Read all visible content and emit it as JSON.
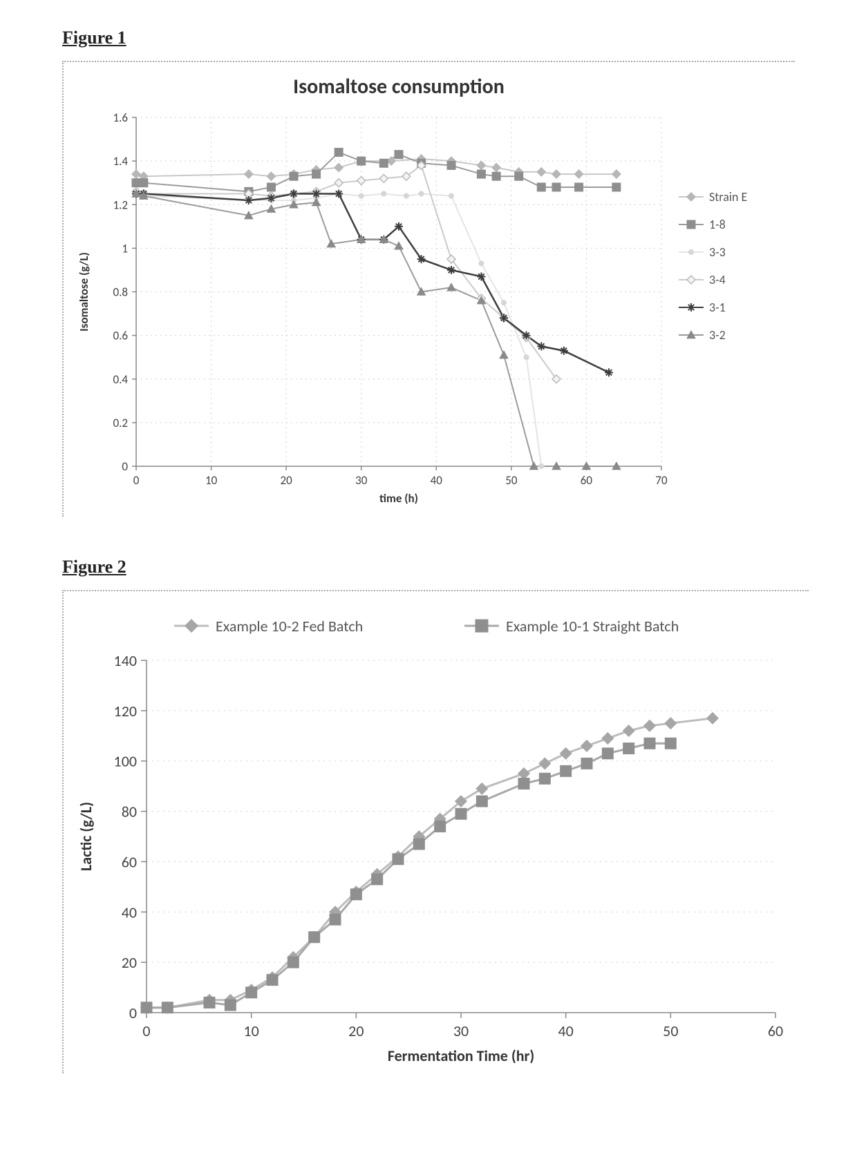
{
  "figure1": {
    "caption": "Figure 1",
    "title": "Isomaltose consumption",
    "title_fontsize": 30,
    "title_fontweight": "bold",
    "xlabel": "time (h)",
    "ylabel": "Isomaltose (g/L)",
    "label_fontsize": 17,
    "label_fontweight": "bold",
    "tick_fontsize": 17,
    "background_color": "#ffffff",
    "grid_major_color": "#cfcfcf",
    "grid_minor_color": "#e0e0e0",
    "axis_color": "#888888",
    "xlim": [
      0,
      70
    ],
    "ylim": [
      0,
      1.6
    ],
    "xticks": [
      0,
      10,
      20,
      30,
      40,
      50,
      60,
      70
    ],
    "yticks": [
      0,
      0.2,
      0.4,
      0.6,
      0.8,
      1.0,
      1.2,
      1.4,
      1.6
    ],
    "series": [
      {
        "name": "Strain E",
        "marker": "diamond",
        "color": "#b7b7b7",
        "line_color": "#c8c8c8",
        "x": [
          0,
          1,
          15,
          18,
          21,
          24,
          27,
          30,
          34,
          38,
          42,
          46,
          48,
          51,
          54,
          56,
          59,
          64
        ],
        "y": [
          1.34,
          1.33,
          1.34,
          1.33,
          1.34,
          1.36,
          1.37,
          1.4,
          1.4,
          1.41,
          1.4,
          1.38,
          1.37,
          1.35,
          1.35,
          1.34,
          1.34,
          1.34
        ]
      },
      {
        "name": "1-8",
        "marker": "square",
        "color": "#8e8e8e",
        "line_color": "#9a9a9a",
        "x": [
          0,
          1,
          15,
          18,
          21,
          24,
          27,
          30,
          33,
          35,
          38,
          42,
          46,
          48,
          51,
          54,
          56,
          59,
          64
        ],
        "y": [
          1.3,
          1.3,
          1.26,
          1.28,
          1.33,
          1.34,
          1.44,
          1.4,
          1.39,
          1.43,
          1.39,
          1.38,
          1.34,
          1.33,
          1.33,
          1.28,
          1.28,
          1.28,
          1.28
        ]
      },
      {
        "name": "3-3",
        "marker": "dot",
        "color": "#d6d6d6",
        "line_color": "#e4e4e4",
        "x": [
          0,
          1,
          15,
          18,
          21,
          24,
          27,
          30,
          33,
          36,
          38,
          42,
          46,
          49,
          52,
          54
        ],
        "y": [
          1.25,
          1.24,
          1.22,
          1.22,
          1.22,
          1.23,
          1.25,
          1.24,
          1.25,
          1.24,
          1.25,
          1.24,
          0.93,
          0.75,
          0.5,
          0.0
        ]
      },
      {
        "name": "3-4",
        "marker": "diamond_open",
        "color": "#b9b9b9",
        "line_color": "#cacaca",
        "x": [
          0,
          1,
          15,
          18,
          21,
          24,
          27,
          30,
          33,
          36,
          38,
          42,
          46,
          49,
          52,
          56
        ],
        "y": [
          1.26,
          1.25,
          1.25,
          1.24,
          1.25,
          1.26,
          1.3,
          1.31,
          1.32,
          1.33,
          1.38,
          0.95,
          0.77,
          0.68,
          0.59,
          0.4
        ]
      },
      {
        "name": "3-1",
        "marker": "asterisk",
        "color": "#3d3d3d",
        "line_color": "#3d3d3d",
        "x": [
          0,
          1,
          15,
          18,
          21,
          24,
          27,
          30,
          33,
          35,
          38,
          42,
          46,
          49,
          52,
          54,
          57,
          63
        ],
        "y": [
          1.25,
          1.25,
          1.22,
          1.23,
          1.25,
          1.25,
          1.25,
          1.04,
          1.04,
          1.1,
          0.95,
          0.9,
          0.87,
          0.68,
          0.6,
          0.55,
          0.53,
          0.43
        ]
      },
      {
        "name": "3-2",
        "marker": "triangle",
        "color": "#8a8a8a",
        "line_color": "#9a9a9a",
        "x": [
          0,
          1,
          15,
          18,
          21,
          24,
          26,
          30,
          33,
          35,
          38,
          42,
          46,
          49,
          53,
          56,
          60,
          64
        ],
        "y": [
          1.25,
          1.24,
          1.15,
          1.18,
          1.2,
          1.21,
          1.02,
          1.04,
          1.04,
          1.01,
          0.8,
          0.82,
          0.76,
          0.51,
          0.0,
          0.0,
          0.0,
          0.0
        ]
      }
    ],
    "legend_items": [
      "Strain E",
      "1-8",
      "3-3",
      "3-4",
      "3-1",
      "3-2"
    ]
  },
  "figure2": {
    "caption": "Figure 2",
    "xlabel": "Fermentation Time (hr)",
    "ylabel": "Lactic  (g/L)",
    "label_fontsize": 22,
    "label_fontweight": "bold",
    "tick_fontsize": 22,
    "background_color": "#ffffff",
    "grid_color": "#cfcfcf",
    "axis_color": "#888888",
    "xlim": [
      0,
      60
    ],
    "ylim": [
      0,
      140
    ],
    "xticks": [
      0,
      10,
      20,
      30,
      40,
      50,
      60
    ],
    "yticks": [
      0,
      20,
      40,
      60,
      80,
      100,
      120,
      140
    ],
    "series": [
      {
        "name": "Example 10-2 Fed Batch",
        "marker": "diamond",
        "color": "#a6a6a6",
        "line_color": "#bcbcbc",
        "x": [
          0,
          2,
          6,
          8,
          10,
          12,
          14,
          16,
          18,
          20,
          22,
          24,
          26,
          28,
          30,
          32,
          36,
          38,
          40,
          42,
          44,
          46,
          48,
          50,
          54
        ],
        "y": [
          2,
          2,
          5,
          5,
          9,
          14,
          22,
          30,
          40,
          48,
          55,
          62,
          70,
          77,
          84,
          89,
          95,
          99,
          103,
          106,
          109,
          112,
          114,
          115,
          117
        ]
      },
      {
        "name": "Example 10-1 Straight Batch",
        "marker": "square",
        "color": "#8f8f8f",
        "line_color": "#a8a8a8",
        "x": [
          0,
          2,
          6,
          8,
          10,
          12,
          14,
          16,
          18,
          20,
          22,
          24,
          26,
          28,
          30,
          32,
          36,
          38,
          40,
          42,
          44,
          46,
          48,
          50
        ],
        "y": [
          2,
          2,
          4,
          3,
          8,
          13,
          20,
          30,
          37,
          47,
          53,
          61,
          67,
          74,
          79,
          84,
          91,
          93,
          96,
          99,
          103,
          105,
          107,
          107
        ]
      }
    ],
    "legend_items": [
      "Example 10-2 Fed Batch",
      "Example 10-1 Straight Batch"
    ]
  }
}
